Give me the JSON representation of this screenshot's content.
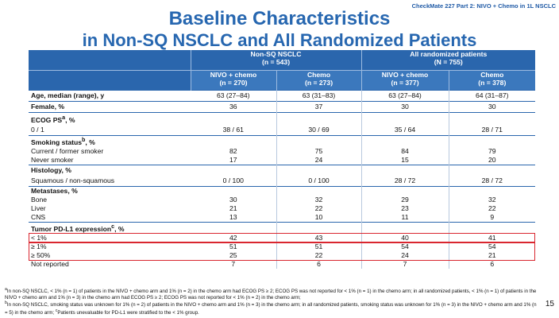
{
  "header": {
    "link_text": "CheckMate 227 Part 2: NIVO + Chemo in 1L NSCLC"
  },
  "title": {
    "line1": "Baseline Characteristics",
    "line2": "in Non-SQ NSCLC and All Randomized Patients"
  },
  "table": {
    "groups": [
      {
        "name": "Non-SQ NSCLC",
        "n": "(n = 543)"
      },
      {
        "name": "All randomized patients",
        "n": "(N = 755)"
      }
    ],
    "arms": [
      {
        "name": "NIVO + chemo",
        "n": "(n = 270)"
      },
      {
        "name": "Chemo",
        "n": "(n = 273)"
      },
      {
        "name": "NIVO + chemo",
        "n": "(n = 377)"
      },
      {
        "name": "Chemo",
        "n": "(n = 378)"
      }
    ],
    "age": {
      "label": "Age, median (range), y",
      "values": [
        "63 (27–84)",
        "63 (31–83)",
        "63 (27–84)",
        "64 (31–87)"
      ]
    },
    "female": {
      "label": "Female, %",
      "values": [
        "36",
        "37",
        "30",
        "30"
      ]
    },
    "ecog": {
      "label": "ECOG PS",
      "sup": "a",
      "suffix": ", %",
      "row_label": "0 / 1",
      "values": [
        "38 / 61",
        "30 / 69",
        "35 / 64",
        "28 / 71"
      ]
    },
    "smoking": {
      "label": "Smoking status",
      "sup": "b",
      "suffix": ", %",
      "rows": [
        {
          "label": "Current / former smoker",
          "values": [
            "82",
            "75",
            "84",
            "79"
          ]
        },
        {
          "label": "Never smoker",
          "values": [
            "17",
            "24",
            "15",
            "20"
          ]
        }
      ]
    },
    "histology": {
      "label": "Histology, %",
      "row_label": "Squamous / non-squamous",
      "values": [
        "0 / 100",
        "0 / 100",
        "28 / 72",
        "28 / 72"
      ]
    },
    "metastases": {
      "label": "Metastases, %",
      "rows": [
        {
          "label": "Bone",
          "values": [
            "30",
            "32",
            "29",
            "32"
          ]
        },
        {
          "label": "Liver",
          "values": [
            "21",
            "22",
            "23",
            "22"
          ]
        },
        {
          "label": "CNS",
          "values": [
            "13",
            "10",
            "11",
            "9"
          ]
        }
      ]
    },
    "pdl1": {
      "label": "Tumor PD-L1 expression",
      "sup": "c",
      "suffix": ", %",
      "rows": [
        {
          "label": "< 1%",
          "values": [
            "42",
            "43",
            "40",
            "41"
          ]
        },
        {
          "label": "≥ 1%",
          "values": [
            "51",
            "51",
            "54",
            "54"
          ]
        },
        {
          "label": "≥ 50%",
          "values": [
            "25",
            "22",
            "24",
            "21"
          ]
        },
        {
          "label": "Not reported",
          "values": [
            "7",
            "6",
            "7",
            "6"
          ]
        }
      ]
    }
  },
  "footnotes": {
    "a_sup": "a",
    "a_text": "In non-SQ NSCLC, < 1% (n = 1) of patients in the NIVO + chemo arm and 1% (n = 2) in the chemo arm had ECOG PS ≥ 2; ECOG PS was not reported for < 1% (n = 1) in the chemo arm; in all randomized patients, < 1% (n = 1) of patients in the NIVO + chemo arm and 1% (n = 3) in the chemo arm had ECOG PS ≥ 2; ECOG PS was not reported for < 1% (n = 2) in the chemo arm;",
    "b_sup": "b",
    "b_text": "In non-SQ NSCLC, smoking status was unknown for 1% (n = 2) of patients in the NIVO + chemo arm and 1% (n = 3) in the chemo arm; in all randomized patients, smoking status was unknown for 1% (n = 3) in the NIVO + chemo arm and 1% (n = 5) in the chemo arm;",
    "c_sup": "c",
    "c_text": "Patients unevaluable for PD-L1 were stratified to the < 1% group."
  },
  "page_number": "15",
  "colors": {
    "title": "#2767b0",
    "header_bg": "#2a66ad",
    "highlight": "#d9262f"
  }
}
